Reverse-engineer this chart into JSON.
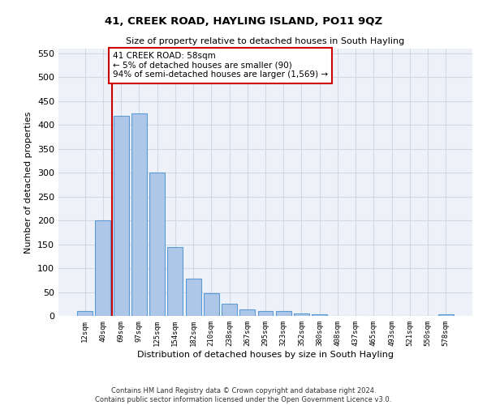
{
  "title": "41, CREEK ROAD, HAYLING ISLAND, PO11 9QZ",
  "subtitle": "Size of property relative to detached houses in South Hayling",
  "xlabel": "Distribution of detached houses by size in South Hayling",
  "ylabel": "Number of detached properties",
  "categories": [
    "12sqm",
    "40sqm",
    "69sqm",
    "97sqm",
    "125sqm",
    "154sqm",
    "182sqm",
    "210sqm",
    "238sqm",
    "267sqm",
    "295sqm",
    "323sqm",
    "352sqm",
    "380sqm",
    "408sqm",
    "437sqm",
    "465sqm",
    "493sqm",
    "521sqm",
    "550sqm",
    "578sqm"
  ],
  "values": [
    10,
    200,
    420,
    425,
    300,
    145,
    78,
    48,
    25,
    13,
    10,
    10,
    5,
    4,
    0,
    0,
    0,
    0,
    0,
    0,
    4
  ],
  "bar_color": "#aec6e8",
  "bar_edge_color": "#5b9bd5",
  "annotation_text": "41 CREEK ROAD: 58sqm\n← 5% of detached houses are smaller (90)\n94% of semi-detached houses are larger (1,569) →",
  "annotation_box_color": "#ffffff",
  "annotation_box_edge_color": "#cc0000",
  "redline_color": "#cc0000",
  "ylim": [
    0,
    560
  ],
  "yticks": [
    0,
    50,
    100,
    150,
    200,
    250,
    300,
    350,
    400,
    450,
    500,
    550
  ],
  "grid_color": "#d0d8e8",
  "background_color": "#eef2f8",
  "footer": "Contains HM Land Registry data © Crown copyright and database right 2024.\nContains public sector information licensed under the Open Government Licence v3.0."
}
